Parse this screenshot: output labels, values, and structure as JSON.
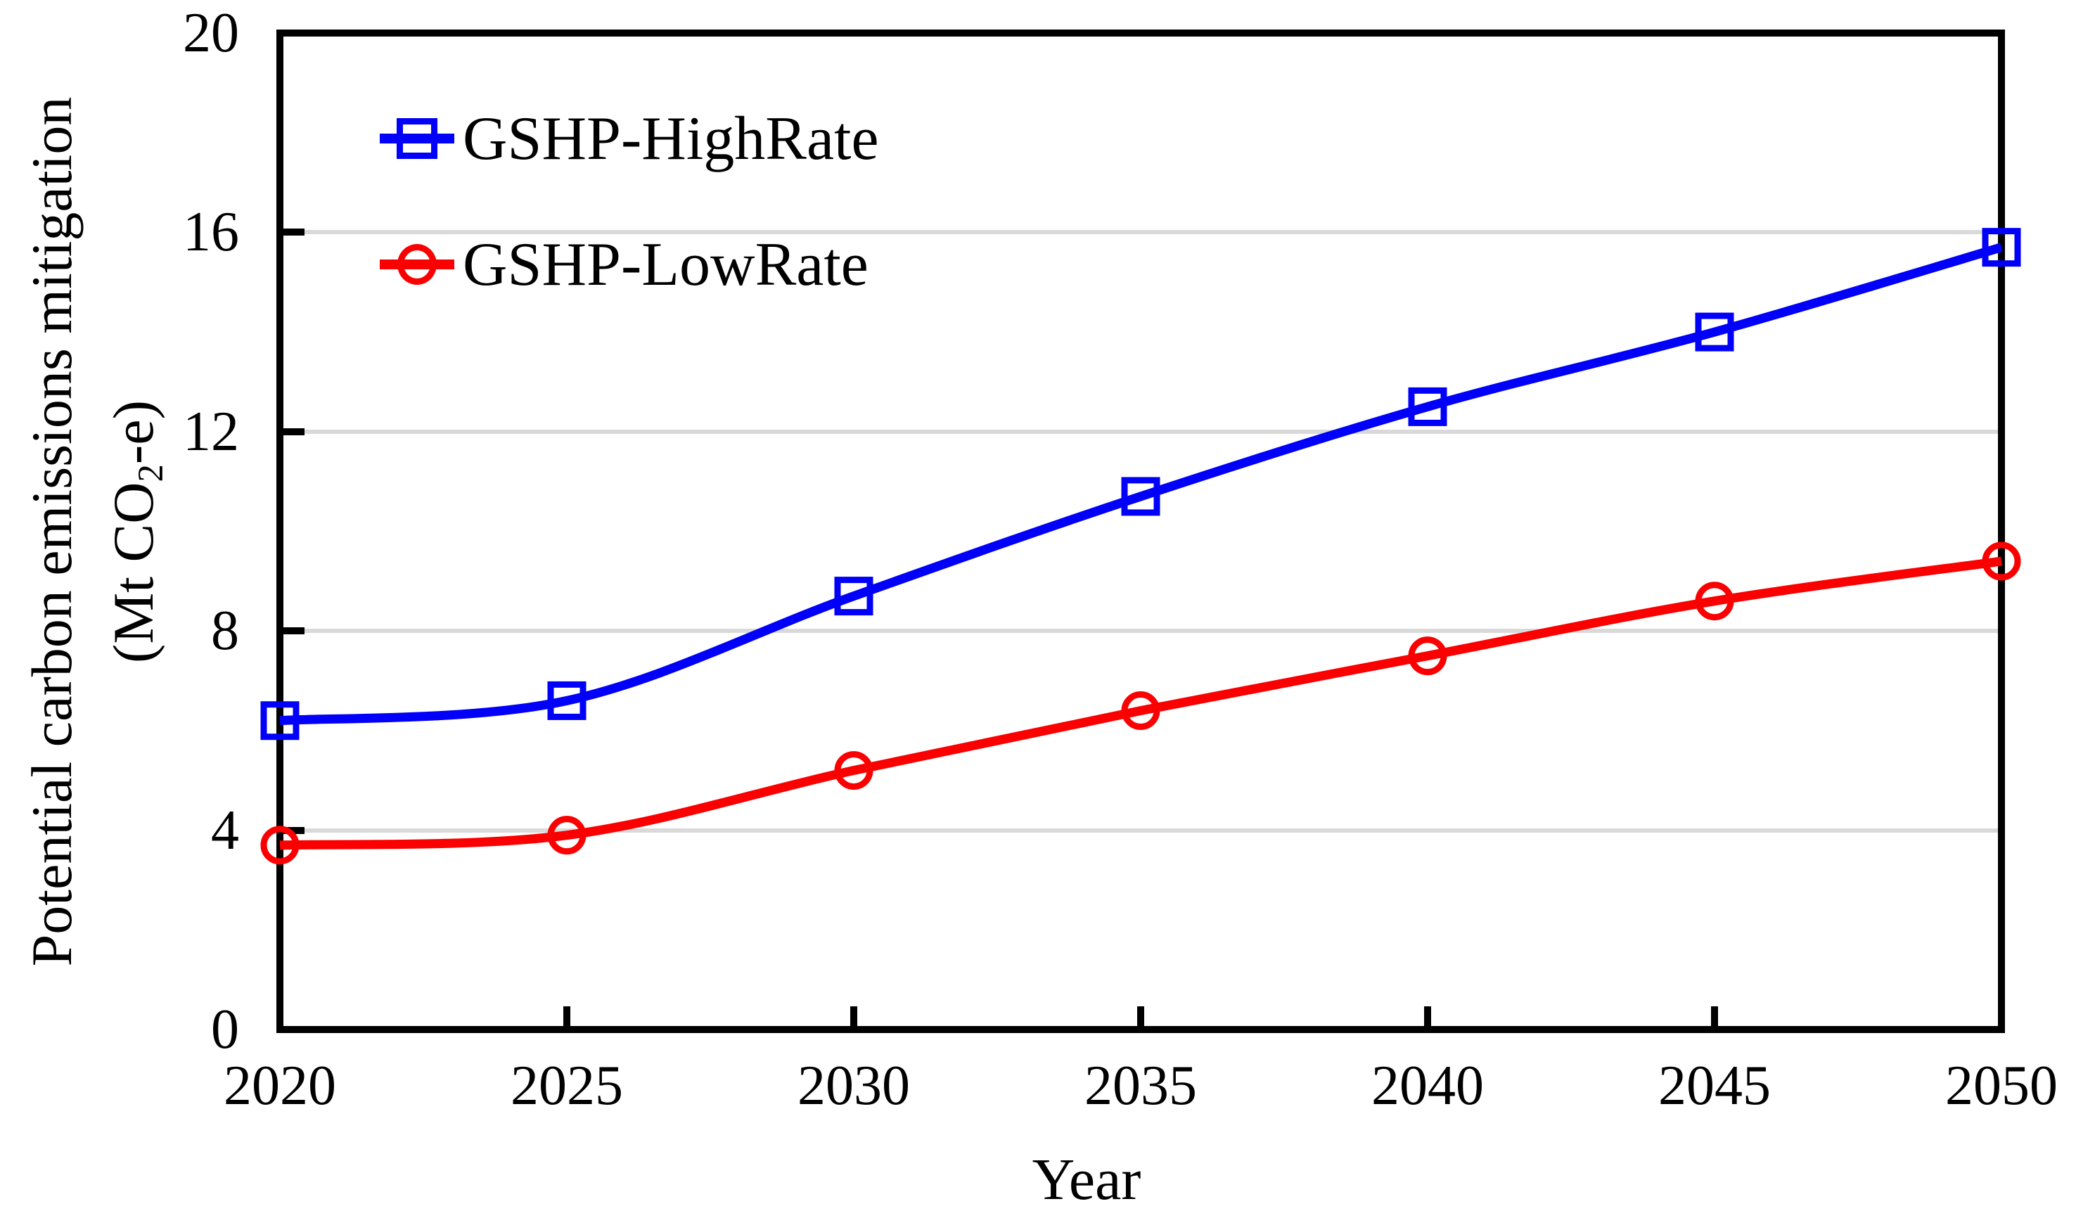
{
  "chart_data": {
    "type": "line",
    "title": "",
    "xlabel": "Year",
    "ylabel_line1": "Potential carbon emissions mitigation",
    "ylabel_unit_pre": "(Mt CO",
    "ylabel_unit_sub": "2",
    "ylabel_unit_post": "-e)",
    "xlim": [
      2020,
      2050
    ],
    "ylim": [
      0,
      20
    ],
    "x": [
      2020,
      2025,
      2030,
      2035,
      2040,
      2045,
      2050
    ],
    "yticks": [
      0,
      4,
      8,
      12,
      16,
      20
    ],
    "grid": "horizontal-only",
    "gridline_color": "#d9d9d9",
    "axis_color": "#000000",
    "background_color": "#ffffff",
    "legend_position": "top-left-inside",
    "line_style": "smooth",
    "series": [
      {
        "name": "GSHP-HighRate",
        "marker": "square",
        "color": "#0000fa",
        "values": [
          6.2,
          6.6,
          8.7,
          10.7,
          12.5,
          14.0,
          15.7
        ]
      },
      {
        "name": "GSHP-LowRate",
        "marker": "circle",
        "color": "#fb0000",
        "values": [
          3.7,
          3.9,
          5.2,
          6.4,
          7.5,
          8.6,
          9.4
        ]
      }
    ]
  }
}
